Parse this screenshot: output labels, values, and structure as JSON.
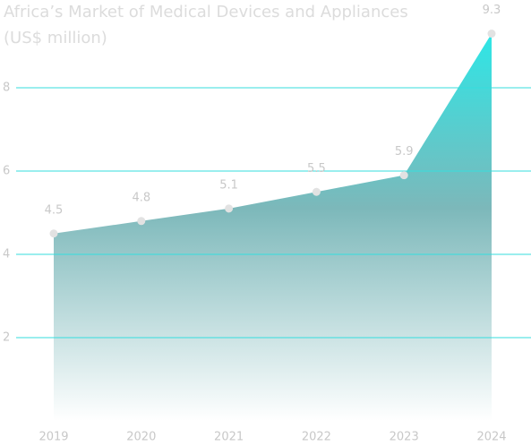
{
  "chart_data": {
    "type": "area",
    "title": "Africa’s Market of Medical Devices and Appliances",
    "subtitle": "(US$ million)",
    "categories": [
      "2019",
      "2020",
      "2021",
      "2022",
      "2023",
      "2024"
    ],
    "values": [
      4.5,
      4.8,
      5.1,
      5.5,
      5.9,
      9.3
    ],
    "ylim": [
      0,
      10
    ],
    "yticks": [
      2,
      4,
      6,
      8
    ],
    "grid": true,
    "color": "#33e0e0",
    "point_color": "#e2e2e2"
  }
}
